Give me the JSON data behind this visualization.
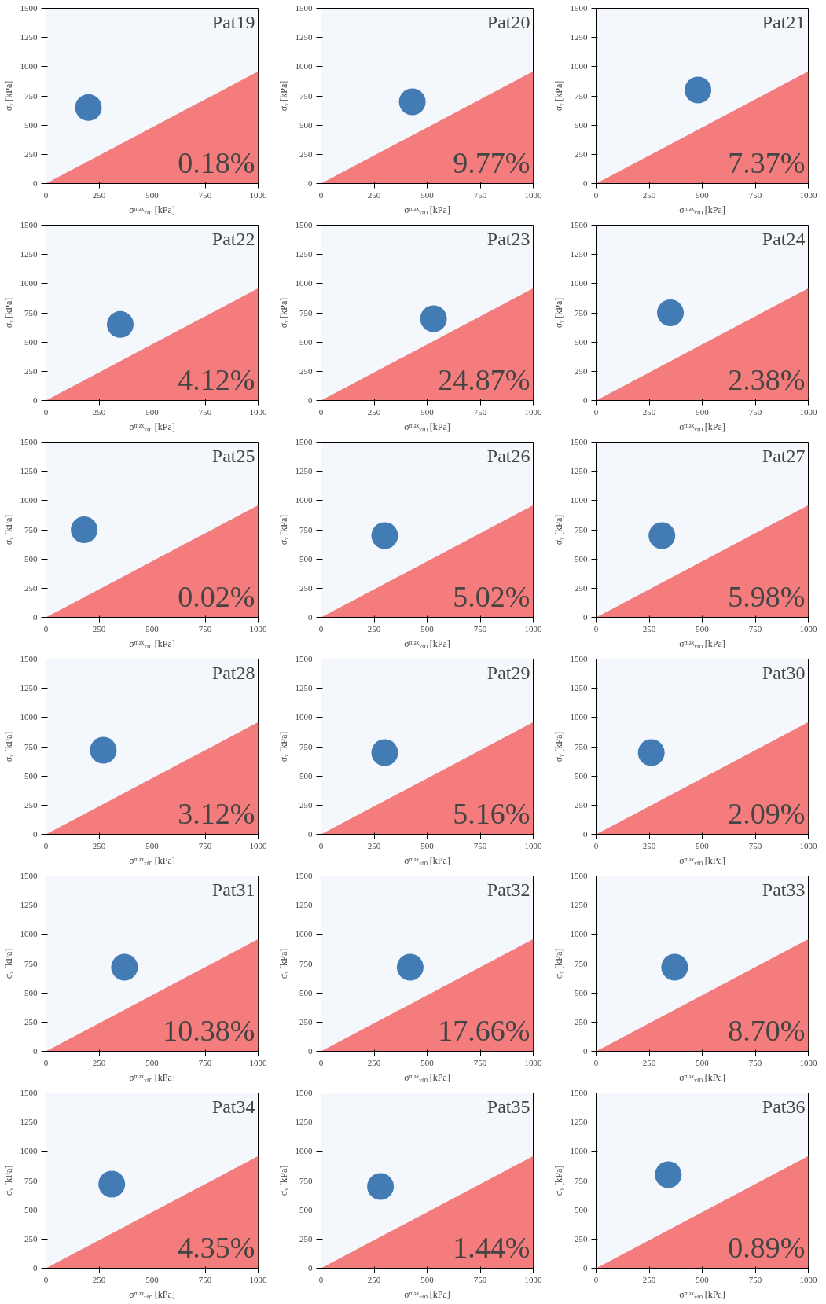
{
  "chart_data": [
    {
      "type": "area",
      "title": "Pat19",
      "xlabel": "σᵐᵃˣᵥₘ [kPa]",
      "ylabel": "σᵧ [kPa]",
      "xlim": [
        0,
        1000
      ],
      "ylim": [
        0,
        1500
      ],
      "xticks": [
        0,
        250,
        500,
        750,
        1000
      ],
      "yticks": [
        0,
        250,
        500,
        750,
        1000,
        1250,
        1500
      ],
      "annotations": [
        "0.18%"
      ],
      "series": [
        {
          "type": "area",
          "color": "#f47c7c",
          "x": [
            0,
            1000
          ],
          "values": [
            0,
            960
          ]
        },
        {
          "type": "scatter",
          "color": "#08519c",
          "x": [
            200
          ],
          "values": [
            650
          ]
        }
      ]
    },
    {
      "type": "area",
      "title": "Pat20",
      "xlabel": "σᵐᵃˣᵥₘ [kPa]",
      "ylabel": "σᵧ [kPa]",
      "xlim": [
        0,
        1000
      ],
      "ylim": [
        0,
        1500
      ],
      "xticks": [
        0,
        250,
        500,
        750,
        1000
      ],
      "yticks": [
        0,
        250,
        500,
        750,
        1000,
        1250,
        1500
      ],
      "annotations": [
        "9.77%"
      ],
      "series": [
        {
          "type": "area",
          "color": "#f47c7c",
          "x": [
            0,
            1000
          ],
          "values": [
            0,
            960
          ]
        },
        {
          "type": "scatter",
          "color": "#08519c",
          "x": [
            430
          ],
          "values": [
            700
          ]
        }
      ]
    },
    {
      "type": "area",
      "title": "Pat21",
      "xlabel": "σᵐᵃˣᵥₘ [kPa]",
      "ylabel": "σᵧ [kPa]",
      "xlim": [
        0,
        1000
      ],
      "ylim": [
        0,
        1500
      ],
      "xticks": [
        0,
        250,
        500,
        750,
        1000
      ],
      "yticks": [
        0,
        250,
        500,
        750,
        1000,
        1250,
        1500
      ],
      "annotations": [
        "7.37%"
      ],
      "series": [
        {
          "type": "area",
          "color": "#f47c7c",
          "x": [
            0,
            1000
          ],
          "values": [
            0,
            960
          ]
        },
        {
          "type": "scatter",
          "color": "#08519c",
          "x": [
            480
          ],
          "values": [
            800
          ]
        }
      ]
    },
    {
      "type": "area",
      "title": "Pat22",
      "xlabel": "σᵐᵃˣᵥₘ [kPa]",
      "ylabel": "σᵧ [kPa]",
      "xlim": [
        0,
        1000
      ],
      "ylim": [
        0,
        1500
      ],
      "xticks": [
        0,
        250,
        500,
        750,
        1000
      ],
      "yticks": [
        0,
        250,
        500,
        750,
        1000,
        1250,
        1500
      ],
      "annotations": [
        "4.12%"
      ],
      "series": [
        {
          "type": "area",
          "color": "#f47c7c",
          "x": [
            0,
            1000
          ],
          "values": [
            0,
            960
          ]
        },
        {
          "type": "scatter",
          "color": "#08519c",
          "x": [
            350
          ],
          "values": [
            650
          ]
        }
      ]
    },
    {
      "type": "area",
      "title": "Pat23",
      "xlabel": "σᵐᵃˣᵥₘ [kPa]",
      "ylabel": "σᵧ [kPa]",
      "xlim": [
        0,
        1000
      ],
      "ylim": [
        0,
        1500
      ],
      "xticks": [
        0,
        250,
        500,
        750,
        1000
      ],
      "yticks": [
        0,
        250,
        500,
        750,
        1000,
        1250,
        1500
      ],
      "annotations": [
        "24.87%"
      ],
      "series": [
        {
          "type": "area",
          "color": "#f47c7c",
          "x": [
            0,
            1000
          ],
          "values": [
            0,
            960
          ]
        },
        {
          "type": "scatter",
          "color": "#08519c",
          "x": [
            530
          ],
          "values": [
            700
          ]
        }
      ]
    },
    {
      "type": "area",
      "title": "Pat24",
      "xlabel": "σᵐᵃˣᵥₘ [kPa]",
      "ylabel": "σᵧ [kPa]",
      "xlim": [
        0,
        1000
      ],
      "ylim": [
        0,
        1500
      ],
      "xticks": [
        0,
        250,
        500,
        750,
        1000
      ],
      "yticks": [
        0,
        250,
        500,
        750,
        1000,
        1250,
        1500
      ],
      "annotations": [
        "2.38%"
      ],
      "series": [
        {
          "type": "area",
          "color": "#f47c7c",
          "x": [
            0,
            1000
          ],
          "values": [
            0,
            960
          ]
        },
        {
          "type": "scatter",
          "color": "#08519c",
          "x": [
            350
          ],
          "values": [
            750
          ]
        }
      ]
    },
    {
      "type": "area",
      "title": "Pat25",
      "xlabel": "σᵐᵃˣᵥₘ [kPa]",
      "ylabel": "σᵧ [kPa]",
      "xlim": [
        0,
        1000
      ],
      "ylim": [
        0,
        1500
      ],
      "xticks": [
        0,
        250,
        500,
        750,
        1000
      ],
      "yticks": [
        0,
        250,
        500,
        750,
        1000,
        1250,
        1500
      ],
      "annotations": [
        "0.02%"
      ],
      "series": [
        {
          "type": "area",
          "color": "#f47c7c",
          "x": [
            0,
            1000
          ],
          "values": [
            0,
            960
          ]
        },
        {
          "type": "scatter",
          "color": "#08519c",
          "x": [
            180
          ],
          "values": [
            750
          ]
        }
      ]
    },
    {
      "type": "area",
      "title": "Pat26",
      "xlabel": "σᵐᵃˣᵥₘ [kPa]",
      "ylabel": "σᵧ [kPa]",
      "xlim": [
        0,
        1000
      ],
      "ylim": [
        0,
        1500
      ],
      "xticks": [
        0,
        250,
        500,
        750,
        1000
      ],
      "yticks": [
        0,
        250,
        500,
        750,
        1000,
        1250,
        1500
      ],
      "annotations": [
        "5.02%"
      ],
      "series": [
        {
          "type": "area",
          "color": "#f47c7c",
          "x": [
            0,
            1000
          ],
          "values": [
            0,
            960
          ]
        },
        {
          "type": "scatter",
          "color": "#08519c",
          "x": [
            300
          ],
          "values": [
            700
          ]
        }
      ]
    },
    {
      "type": "area",
      "title": "Pat27",
      "xlabel": "σᵐᵃˣᵥₘ [kPa]",
      "ylabel": "σᵧ [kPa]",
      "xlim": [
        0,
        1000
      ],
      "ylim": [
        0,
        1500
      ],
      "xticks": [
        0,
        250,
        500,
        750,
        1000
      ],
      "yticks": [
        0,
        250,
        500,
        750,
        1000,
        1250,
        1500
      ],
      "annotations": [
        "5.98%"
      ],
      "series": [
        {
          "type": "area",
          "color": "#f47c7c",
          "x": [
            0,
            1000
          ],
          "values": [
            0,
            960
          ]
        },
        {
          "type": "scatter",
          "color": "#08519c",
          "x": [
            310
          ],
          "values": [
            700
          ]
        }
      ]
    },
    {
      "type": "area",
      "title": "Pat28",
      "xlabel": "σᵐᵃˣᵥₘ [kPa]",
      "ylabel": "σᵧ [kPa]",
      "xlim": [
        0,
        1000
      ],
      "ylim": [
        0,
        1500
      ],
      "xticks": [
        0,
        250,
        500,
        750,
        1000
      ],
      "yticks": [
        0,
        250,
        500,
        750,
        1000,
        1250,
        1500
      ],
      "annotations": [
        "3.12%"
      ],
      "series": [
        {
          "type": "area",
          "color": "#f47c7c",
          "x": [
            0,
            1000
          ],
          "values": [
            0,
            960
          ]
        },
        {
          "type": "scatter",
          "color": "#08519c",
          "x": [
            270
          ],
          "values": [
            720
          ]
        }
      ]
    },
    {
      "type": "area",
      "title": "Pat29",
      "xlabel": "σᵐᵃˣᵥₘ [kPa]",
      "ylabel": "σᵧ [kPa]",
      "xlim": [
        0,
        1000
      ],
      "ylim": [
        0,
        1500
      ],
      "xticks": [
        0,
        250,
        500,
        750,
        1000
      ],
      "yticks": [
        0,
        250,
        500,
        750,
        1000,
        1250,
        1500
      ],
      "annotations": [
        "5.16%"
      ],
      "series": [
        {
          "type": "area",
          "color": "#f47c7c",
          "x": [
            0,
            1000
          ],
          "values": [
            0,
            960
          ]
        },
        {
          "type": "scatter",
          "color": "#08519c",
          "x": [
            300
          ],
          "values": [
            700
          ]
        }
      ]
    },
    {
      "type": "area",
      "title": "Pat30",
      "xlabel": "σᵐᵃˣᵥₘ [kPa]",
      "ylabel": "σᵧ [kPa]",
      "xlim": [
        0,
        1000
      ],
      "ylim": [
        0,
        1500
      ],
      "xticks": [
        0,
        250,
        500,
        750,
        1000
      ],
      "yticks": [
        0,
        250,
        500,
        750,
        1000,
        1250,
        1500
      ],
      "annotations": [
        "2.09%"
      ],
      "series": [
        {
          "type": "area",
          "color": "#f47c7c",
          "x": [
            0,
            1000
          ],
          "values": [
            0,
            960
          ]
        },
        {
          "type": "scatter",
          "color": "#08519c",
          "x": [
            260
          ],
          "values": [
            700
          ]
        }
      ]
    },
    {
      "type": "area",
      "title": "Pat31",
      "xlabel": "σᵐᵃˣᵥₘ [kPa]",
      "ylabel": "σᵧ [kPa]",
      "xlim": [
        0,
        1000
      ],
      "ylim": [
        0,
        1500
      ],
      "xticks": [
        0,
        250,
        500,
        750,
        1000
      ],
      "yticks": [
        0,
        250,
        500,
        750,
        1000,
        1250,
        1500
      ],
      "annotations": [
        "10.38%"
      ],
      "series": [
        {
          "type": "area",
          "color": "#f47c7c",
          "x": [
            0,
            1000
          ],
          "values": [
            0,
            960
          ]
        },
        {
          "type": "scatter",
          "color": "#08519c",
          "x": [
            370
          ],
          "values": [
            720
          ]
        }
      ]
    },
    {
      "type": "area",
      "title": "Pat32",
      "xlabel": "σᵐᵃˣᵥₘ [kPa]",
      "ylabel": "σᵧ [kPa]",
      "xlim": [
        0,
        1000
      ],
      "ylim": [
        0,
        1500
      ],
      "xticks": [
        0,
        250,
        500,
        750,
        1000
      ],
      "yticks": [
        0,
        250,
        500,
        750,
        1000,
        1250,
        1500
      ],
      "annotations": [
        "17.66%"
      ],
      "series": [
        {
          "type": "area",
          "color": "#f47c7c",
          "x": [
            0,
            1000
          ],
          "values": [
            0,
            960
          ]
        },
        {
          "type": "scatter",
          "color": "#08519c",
          "x": [
            420
          ],
          "values": [
            720
          ]
        }
      ]
    },
    {
      "type": "area",
      "title": "Pat33",
      "xlabel": "σᵐᵃˣᵥₘ [kPa]",
      "ylabel": "σᵧ [kPa]",
      "xlim": [
        0,
        1000
      ],
      "ylim": [
        0,
        1500
      ],
      "xticks": [
        0,
        250,
        500,
        750,
        1000
      ],
      "yticks": [
        0,
        250,
        500,
        750,
        1000,
        1250,
        1500
      ],
      "annotations": [
        "8.70%"
      ],
      "series": [
        {
          "type": "area",
          "color": "#f47c7c",
          "x": [
            0,
            1000
          ],
          "values": [
            0,
            960
          ]
        },
        {
          "type": "scatter",
          "color": "#08519c",
          "x": [
            370
          ],
          "values": [
            720
          ]
        }
      ]
    },
    {
      "type": "area",
      "title": "Pat34",
      "xlabel": "σᵐᵃˣᵥₘ [kPa]",
      "ylabel": "σᵧ [kPa]",
      "xlim": [
        0,
        1000
      ],
      "ylim": [
        0,
        1500
      ],
      "xticks": [
        0,
        250,
        500,
        750,
        1000
      ],
      "yticks": [
        0,
        250,
        500,
        750,
        1000,
        1250,
        1500
      ],
      "annotations": [
        "4.35%"
      ],
      "series": [
        {
          "type": "area",
          "color": "#f47c7c",
          "x": [
            0,
            1000
          ],
          "values": [
            0,
            960
          ]
        },
        {
          "type": "scatter",
          "color": "#08519c",
          "x": [
            310
          ],
          "values": [
            720
          ]
        }
      ]
    },
    {
      "type": "area",
      "title": "Pat35",
      "xlabel": "σᵐᵃˣᵥₘ [kPa]",
      "ylabel": "σᵧ [kPa]",
      "xlim": [
        0,
        1000
      ],
      "ylim": [
        0,
        1500
      ],
      "xticks": [
        0,
        250,
        500,
        750,
        1000
      ],
      "yticks": [
        0,
        250,
        500,
        750,
        1000,
        1250,
        1500
      ],
      "annotations": [
        "1.44%"
      ],
      "series": [
        {
          "type": "area",
          "color": "#f47c7c",
          "x": [
            0,
            1000
          ],
          "values": [
            0,
            960
          ]
        },
        {
          "type": "scatter",
          "color": "#08519c",
          "x": [
            280
          ],
          "values": [
            700
          ]
        }
      ]
    },
    {
      "type": "area",
      "title": "Pat36",
      "xlabel": "σᵐᵃˣᵥₘ [kPa]",
      "ylabel": "σᵧ [kPa]",
      "xlim": [
        0,
        1000
      ],
      "ylim": [
        0,
        1500
      ],
      "xticks": [
        0,
        250,
        500,
        750,
        1000
      ],
      "yticks": [
        0,
        250,
        500,
        750,
        1000,
        1250,
        1500
      ],
      "annotations": [
        "0.89%"
      ],
      "series": [
        {
          "type": "area",
          "color": "#f47c7c",
          "x": [
            0,
            1000
          ],
          "values": [
            0,
            960
          ]
        },
        {
          "type": "scatter",
          "color": "#08519c",
          "x": [
            340
          ],
          "values": [
            800
          ]
        }
      ]
    }
  ]
}
